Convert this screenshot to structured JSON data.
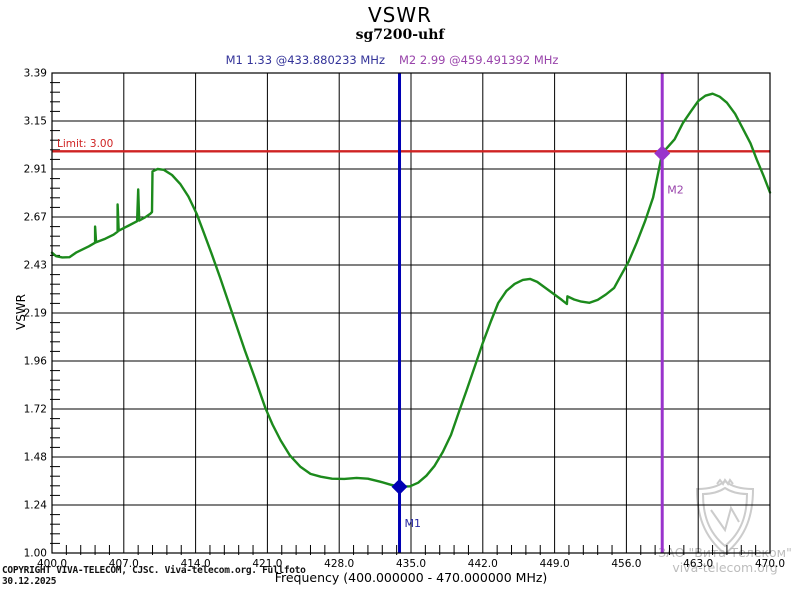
{
  "title": "VSWR",
  "subtitle": "sg7200-uhf",
  "marker_readout": {
    "m1": "M1  1.33 @433.880233 MHz",
    "m2": "M2  2.99 @459.491392 MHz"
  },
  "footer": {
    "copyright": "COPYRIGHT VIVA-TELECOM, CJSC. Viva-telecom.org. Fullfoto",
    "date": "30.12.2025"
  },
  "watermark": {
    "line1": "ЗАО \"Вита-Телеком\"",
    "line2": "viva-telecom.org"
  },
  "chart_data": {
    "type": "line",
    "title": "VSWR",
    "subtitle": "sg7200-uhf",
    "xlabel": "Frequency (400.000000 - 470.000000 MHz)",
    "ylabel": "VSWR",
    "xlim": [
      400,
      470
    ],
    "ylim": [
      1.0,
      3.39
    ],
    "grid": true,
    "x_tick_labels": [
      "400.0",
      "407.0",
      "414.0",
      "421.0",
      "428.0",
      "435.0",
      "442.0",
      "449.0",
      "456.0",
      "463.0",
      "470.0"
    ],
    "y_tick_labels": [
      "1.00",
      "1.24",
      "1.48",
      "1.72",
      "1.96",
      "2.19",
      "2.43",
      "2.67",
      "2.91",
      "3.15",
      "3.39"
    ],
    "limit_line": {
      "value": 3.0,
      "label": "Limit: 3.00",
      "color": "#cf2323"
    },
    "markers": [
      {
        "name": "M1",
        "freq_mhz": 433.880233,
        "vswr": 1.33,
        "line_color": "#0000b4",
        "text_color": "#2929a3"
      },
      {
        "name": "M2",
        "freq_mhz": 459.491392,
        "vswr": 2.99,
        "line_color": "#9933cc",
        "text_color": "#9944ab"
      }
    ],
    "series": [
      {
        "name": "VSWR",
        "color": "#1c8a1c",
        "points": [
          [
            400.0,
            2.495
          ],
          [
            400.4,
            2.478
          ],
          [
            401.0,
            2.472
          ],
          [
            401.7,
            2.473
          ],
          [
            402.4,
            2.497
          ],
          [
            403.6,
            2.527
          ],
          [
            404.2,
            2.545
          ],
          [
            404.2,
            2.625
          ],
          [
            404.3,
            2.547
          ],
          [
            405.2,
            2.565
          ],
          [
            406.0,
            2.585
          ],
          [
            406.4,
            2.6
          ],
          [
            406.4,
            2.735
          ],
          [
            406.5,
            2.605
          ],
          [
            407.4,
            2.628
          ],
          [
            408.3,
            2.652
          ],
          [
            408.4,
            2.81
          ],
          [
            408.5,
            2.655
          ],
          [
            409.1,
            2.672
          ],
          [
            409.6,
            2.69
          ],
          [
            409.75,
            2.698
          ],
          [
            409.8,
            2.9
          ],
          [
            410.3,
            2.912
          ],
          [
            410.9,
            2.908
          ],
          [
            411.7,
            2.882
          ],
          [
            412.5,
            2.838
          ],
          [
            413.3,
            2.775
          ],
          [
            414.1,
            2.69
          ],
          [
            414.8,
            2.595
          ],
          [
            415.6,
            2.485
          ],
          [
            416.4,
            2.37
          ],
          [
            417.2,
            2.25
          ],
          [
            418.0,
            2.13
          ],
          [
            418.8,
            2.01
          ],
          [
            419.8,
            1.868
          ],
          [
            420.8,
            1.723
          ],
          [
            421.5,
            1.64
          ],
          [
            422.3,
            1.56
          ],
          [
            423.2,
            1.485
          ],
          [
            424.2,
            1.43
          ],
          [
            425.2,
            1.394
          ],
          [
            426.2,
            1.38
          ],
          [
            427.3,
            1.37
          ],
          [
            428.5,
            1.369
          ],
          [
            429.7,
            1.374
          ],
          [
            430.8,
            1.37
          ],
          [
            432.0,
            1.355
          ],
          [
            433.0,
            1.34
          ],
          [
            433.880233,
            1.33
          ],
          [
            434.9,
            1.332
          ],
          [
            435.7,
            1.35
          ],
          [
            436.5,
            1.385
          ],
          [
            437.3,
            1.434
          ],
          [
            438.1,
            1.503
          ],
          [
            438.9,
            1.588
          ],
          [
            439.6,
            1.692
          ],
          [
            440.4,
            1.807
          ],
          [
            441.2,
            1.926
          ],
          [
            442.0,
            2.046
          ],
          [
            442.8,
            2.155
          ],
          [
            443.5,
            2.245
          ],
          [
            444.3,
            2.305
          ],
          [
            445.1,
            2.34
          ],
          [
            445.9,
            2.36
          ],
          [
            446.6,
            2.365
          ],
          [
            447.3,
            2.35
          ],
          [
            448.1,
            2.32
          ],
          [
            448.9,
            2.29
          ],
          [
            449.7,
            2.26
          ],
          [
            450.2,
            2.24
          ],
          [
            450.25,
            2.278
          ],
          [
            450.9,
            2.262
          ],
          [
            451.6,
            2.252
          ],
          [
            452.4,
            2.246
          ],
          [
            453.2,
            2.26
          ],
          [
            454.0,
            2.287
          ],
          [
            454.8,
            2.32
          ],
          [
            455.4,
            2.375
          ],
          [
            456.2,
            2.45
          ],
          [
            457.0,
            2.545
          ],
          [
            457.8,
            2.65
          ],
          [
            458.6,
            2.77
          ],
          [
            459.491392,
            2.99
          ],
          [
            460.7,
            3.06
          ],
          [
            461.5,
            3.14
          ],
          [
            462.3,
            3.2
          ],
          [
            463.0,
            3.25
          ],
          [
            463.7,
            3.277
          ],
          [
            464.4,
            3.287
          ],
          [
            465.1,
            3.272
          ],
          [
            465.8,
            3.242
          ],
          [
            466.6,
            3.187
          ],
          [
            467.3,
            3.118
          ],
          [
            468.1,
            3.04
          ],
          [
            468.7,
            2.96
          ],
          [
            469.4,
            2.875
          ],
          [
            470.0,
            2.795
          ]
        ]
      }
    ]
  }
}
